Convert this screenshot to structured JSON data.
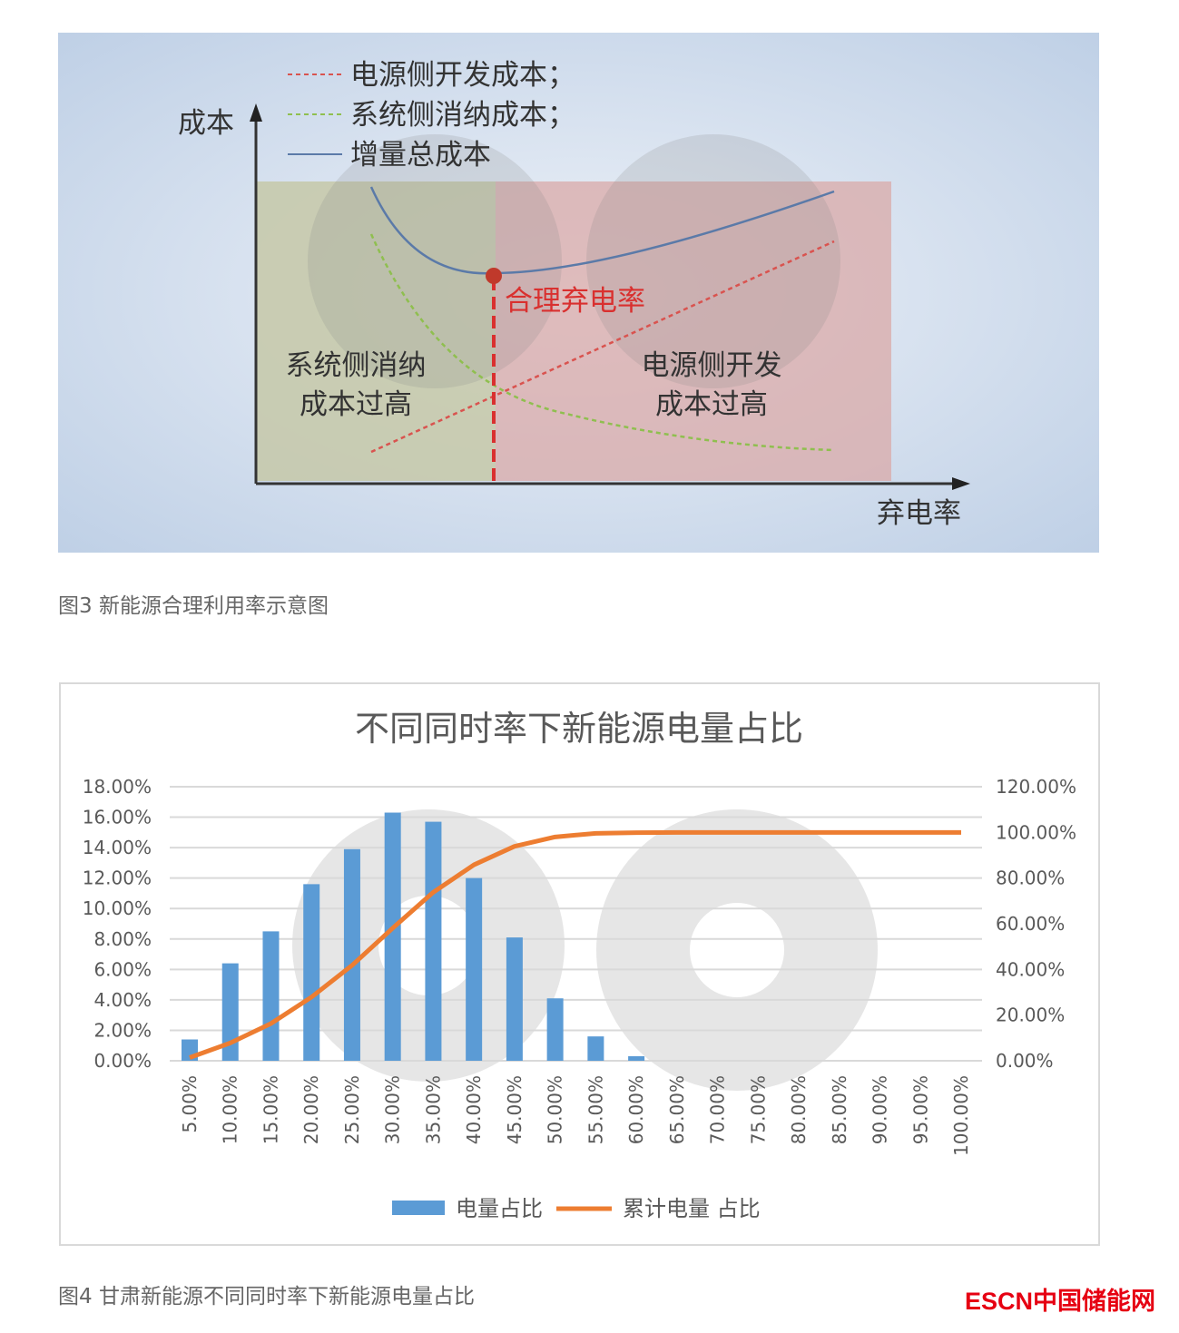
{
  "figure3": {
    "legend": [
      "电源侧开发成本；",
      "系统侧消纳成本；",
      "增量总成本"
    ],
    "y_axis_label": "成本",
    "x_axis_label": "弃电率",
    "optimal_label": "合理弃电率",
    "left_region_label": [
      "系统侧消纳",
      "成本过高"
    ],
    "right_region_label": [
      "电源侧开发",
      "成本过高"
    ],
    "caption": "图3 新能源合理利用率示意图",
    "colors": {
      "source_cost": "#d9534f",
      "system_cost": "#8fbf4f",
      "total_cost": "#5b7aa8",
      "optimal": "#d9302f"
    }
  },
  "chart_data": {
    "type": "bar+line",
    "title": "不同同时率下新能源电量占比",
    "categories": [
      "5.00%",
      "10.00%",
      "15.00%",
      "20.00%",
      "25.00%",
      "30.00%",
      "35.00%",
      "40.00%",
      "45.00%",
      "50.00%",
      "55.00%",
      "60.00%",
      "65.00%",
      "70.00%",
      "75.00%",
      "80.00%",
      "85.00%",
      "90.00%",
      "95.00%",
      "100.00%"
    ],
    "series": [
      {
        "name": "电量占比",
        "type": "bar",
        "axis": "left",
        "color": "#5b9bd5",
        "values": [
          1.4,
          6.4,
          8.5,
          11.6,
          13.9,
          16.3,
          15.7,
          12.0,
          8.1,
          4.1,
          1.6,
          0.3,
          0,
          0,
          0,
          0,
          0,
          0,
          0,
          0
        ]
      },
      {
        "name": "累计电量 占比",
        "type": "line",
        "axis": "right",
        "color": "#ed7d31",
        "values": [
          1.4,
          7.8,
          16.3,
          27.9,
          41.8,
          58.1,
          73.8,
          85.8,
          93.9,
          98.0,
          99.6,
          99.9,
          100,
          100,
          100,
          100,
          100,
          100,
          100,
          100
        ]
      }
    ],
    "y_left": {
      "range": [
        0,
        18
      ],
      "ticks": [
        "0.00%",
        "2.00%",
        "4.00%",
        "6.00%",
        "8.00%",
        "10.00%",
        "12.00%",
        "14.00%",
        "16.00%",
        "18.00%"
      ]
    },
    "y_right": {
      "range": [
        0,
        120
      ],
      "ticks": [
        "0.00%",
        "20.00%",
        "40.00%",
        "60.00%",
        "80.00%",
        "100.00%",
        "120.00%"
      ]
    },
    "grid": true,
    "legend_position": "bottom",
    "caption": "图4 甘肃新能源不同同时率下新能源电量占比"
  },
  "logo": "ESCN中国储能网"
}
